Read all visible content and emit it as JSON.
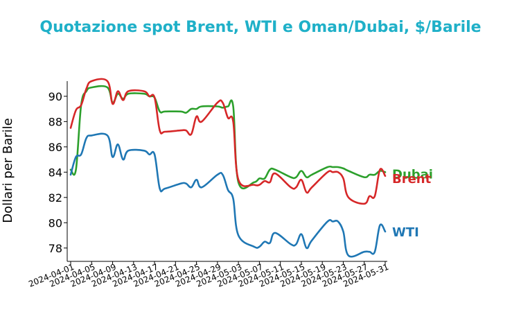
{
  "chart_data": {
    "type": "line",
    "title": "Quotazione spot Brent, WTI e Oman/Dubai, $/Barile",
    "xlabel": "",
    "ylabel": "Dollari per Barile",
    "ylim": [
      77,
      91.2
    ],
    "yticks": [
      78,
      80,
      82,
      84,
      86,
      88,
      90
    ],
    "xticks": [
      "2024-04-01",
      "2024-04-05",
      "2024-04-09",
      "2024-04-13",
      "2024-04-17",
      "2024-04-21",
      "2024-04-25",
      "2024-04-29",
      "2024-05-03",
      "2024-05-07",
      "2024-05-11",
      "2024-05-15",
      "2024-05-19",
      "2024-05-23",
      "2024-05-27",
      "2024-05-31"
    ],
    "xrange": [
      "2024-04-01",
      "2024-05-31"
    ],
    "grid": false,
    "legend": "inline-right",
    "series": [
      {
        "name": "Dubai",
        "color": "#2ca02c",
        "points": [
          [
            "2024-04-01",
            84.2
          ],
          [
            "2024-04-02",
            84.2
          ],
          [
            "2024-04-03",
            89.3
          ],
          [
            "2024-04-04",
            90.4
          ],
          [
            "2024-04-05",
            90.7
          ],
          [
            "2024-04-08",
            90.7
          ],
          [
            "2024-04-09",
            89.5
          ],
          [
            "2024-04-10",
            90.2
          ],
          [
            "2024-04-11",
            89.8
          ],
          [
            "2024-04-12",
            90.2
          ],
          [
            "2024-04-15",
            90.2
          ],
          [
            "2024-04-16",
            90.0
          ],
          [
            "2024-04-17",
            89.9
          ],
          [
            "2024-04-18",
            88.8
          ],
          [
            "2024-04-19",
            88.8
          ],
          [
            "2024-04-22",
            88.8
          ],
          [
            "2024-04-23",
            88.7
          ],
          [
            "2024-04-24",
            89.0
          ],
          [
            "2024-04-25",
            89.0
          ],
          [
            "2024-04-26",
            89.2
          ],
          [
            "2024-04-29",
            89.2
          ],
          [
            "2024-04-30",
            89.1
          ],
          [
            "2024-05-01",
            89.2
          ],
          [
            "2024-05-02",
            89.2
          ],
          [
            "2024-05-03",
            83.2
          ],
          [
            "2024-05-06",
            83.2
          ],
          [
            "2024-05-07",
            83.5
          ],
          [
            "2024-05-08",
            83.5
          ],
          [
            "2024-05-09",
            84.2
          ],
          [
            "2024-05-10",
            84.2
          ],
          [
            "2024-05-13",
            83.6
          ],
          [
            "2024-05-14",
            83.6
          ],
          [
            "2024-05-15",
            84.1
          ],
          [
            "2024-05-16",
            83.6
          ],
          [
            "2024-05-17",
            83.8
          ],
          [
            "2024-05-20",
            84.4
          ],
          [
            "2024-05-21",
            84.4
          ],
          [
            "2024-05-22",
            84.4
          ],
          [
            "2024-05-23",
            84.3
          ],
          [
            "2024-05-24",
            84.1
          ],
          [
            "2024-05-27",
            83.6
          ],
          [
            "2024-05-28",
            83.8
          ],
          [
            "2024-05-29",
            83.8
          ],
          [
            "2024-05-30",
            84.1
          ],
          [
            "2024-05-31",
            84.0
          ]
        ]
      },
      {
        "name": "Brent",
        "color": "#d62728",
        "points": [
          [
            "2024-04-01",
            87.5
          ],
          [
            "2024-04-02",
            88.9
          ],
          [
            "2024-04-03",
            89.3
          ],
          [
            "2024-04-04",
            90.6
          ],
          [
            "2024-04-05",
            91.2
          ],
          [
            "2024-04-08",
            91.2
          ],
          [
            "2024-04-09",
            89.4
          ],
          [
            "2024-04-10",
            90.4
          ],
          [
            "2024-04-11",
            89.7
          ],
          [
            "2024-04-12",
            90.4
          ],
          [
            "2024-04-15",
            90.4
          ],
          [
            "2024-04-16",
            90.0
          ],
          [
            "2024-04-17",
            89.9
          ],
          [
            "2024-04-18",
            87.3
          ],
          [
            "2024-04-19",
            87.2
          ],
          [
            "2024-04-22",
            87.3
          ],
          [
            "2024-04-23",
            87.3
          ],
          [
            "2024-04-24",
            87.0
          ],
          [
            "2024-04-25",
            88.4
          ],
          [
            "2024-04-26",
            88.0
          ],
          [
            "2024-04-29",
            89.5
          ],
          [
            "2024-04-30",
            89.5
          ],
          [
            "2024-05-01",
            88.3
          ],
          [
            "2024-05-02",
            88.0
          ],
          [
            "2024-05-03",
            83.4
          ],
          [
            "2024-05-06",
            83.0
          ],
          [
            "2024-05-07",
            83.0
          ],
          [
            "2024-05-08",
            83.3
          ],
          [
            "2024-05-09",
            83.2
          ],
          [
            "2024-05-10",
            83.9
          ],
          [
            "2024-05-13",
            82.8
          ],
          [
            "2024-05-14",
            82.8
          ],
          [
            "2024-05-15",
            83.4
          ],
          [
            "2024-05-16",
            82.4
          ],
          [
            "2024-05-17",
            82.8
          ],
          [
            "2024-05-20",
            84.0
          ],
          [
            "2024-05-21",
            84.0
          ],
          [
            "2024-05-22",
            84.0
          ],
          [
            "2024-05-23",
            83.5
          ],
          [
            "2024-05-24",
            82.0
          ],
          [
            "2024-05-27",
            81.5
          ],
          [
            "2024-05-28",
            82.1
          ],
          [
            "2024-05-29",
            82.1
          ],
          [
            "2024-05-30",
            84.2
          ],
          [
            "2024-05-31",
            83.7
          ]
        ]
      },
      {
        "name": "WTI",
        "color": "#1f77b4",
        "points": [
          [
            "2024-04-01",
            83.8
          ],
          [
            "2024-04-02",
            85.2
          ],
          [
            "2024-04-03",
            85.4
          ],
          [
            "2024-04-04",
            86.7
          ],
          [
            "2024-04-05",
            86.9
          ],
          [
            "2024-04-08",
            86.9
          ],
          [
            "2024-04-09",
            85.2
          ],
          [
            "2024-04-10",
            86.2
          ],
          [
            "2024-04-11",
            85.0
          ],
          [
            "2024-04-12",
            85.7
          ],
          [
            "2024-04-15",
            85.7
          ],
          [
            "2024-04-16",
            85.4
          ],
          [
            "2024-04-17",
            85.4
          ],
          [
            "2024-04-18",
            82.7
          ],
          [
            "2024-04-19",
            82.7
          ],
          [
            "2024-04-22",
            83.1
          ],
          [
            "2024-04-23",
            83.1
          ],
          [
            "2024-04-24",
            82.8
          ],
          [
            "2024-04-25",
            83.4
          ],
          [
            "2024-04-26",
            82.8
          ],
          [
            "2024-04-29",
            83.8
          ],
          [
            "2024-04-30",
            83.8
          ],
          [
            "2024-05-01",
            82.6
          ],
          [
            "2024-05-02",
            81.9
          ],
          [
            "2024-05-03",
            79.0
          ],
          [
            "2024-05-06",
            78.1
          ],
          [
            "2024-05-07",
            78.1
          ],
          [
            "2024-05-08",
            78.5
          ],
          [
            "2024-05-09",
            78.4
          ],
          [
            "2024-05-10",
            79.2
          ],
          [
            "2024-05-13",
            78.3
          ],
          [
            "2024-05-14",
            78.3
          ],
          [
            "2024-05-15",
            79.1
          ],
          [
            "2024-05-16",
            78.0
          ],
          [
            "2024-05-17",
            78.6
          ],
          [
            "2024-05-20",
            80.1
          ],
          [
            "2024-05-21",
            80.1
          ],
          [
            "2024-05-22",
            80.1
          ],
          [
            "2024-05-23",
            79.3
          ],
          [
            "2024-05-24",
            77.4
          ],
          [
            "2024-05-27",
            77.7
          ],
          [
            "2024-05-28",
            77.7
          ],
          [
            "2024-05-29",
            77.7
          ],
          [
            "2024-05-30",
            79.8
          ],
          [
            "2024-05-31",
            79.3
          ]
        ]
      }
    ]
  }
}
